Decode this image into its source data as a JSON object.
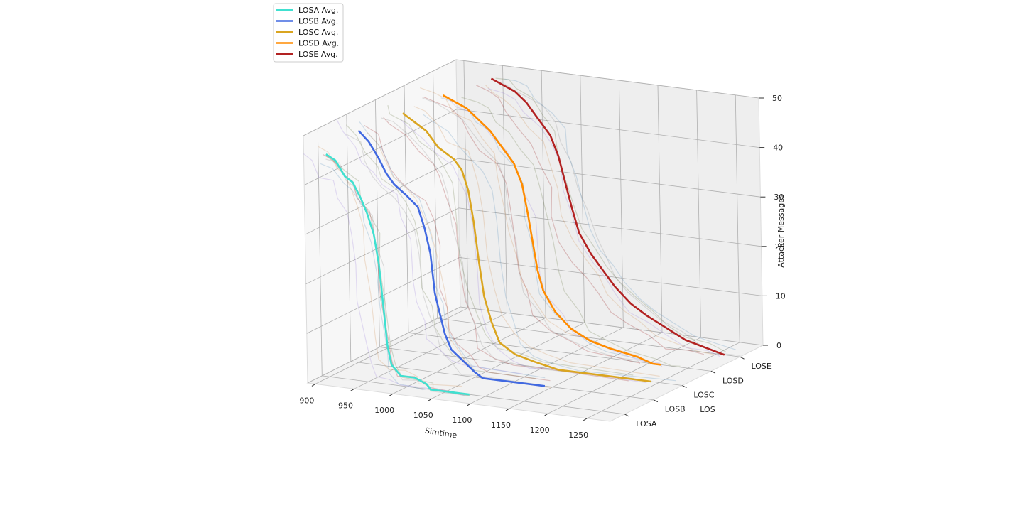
{
  "chart_data": {
    "type": "line",
    "projection": "3d",
    "xlabel": "Simtime",
    "ylabel": "LOS",
    "zlabel": "Attacker Messages",
    "x_ticks": [
      "900",
      "950",
      "1000",
      "1050",
      "1100",
      "1150",
      "1200",
      "1250"
    ],
    "z_ticks": [
      "0",
      "10",
      "20",
      "30",
      "40",
      "50"
    ],
    "categories": [
      "LOSA",
      "LOSB",
      "LOSC",
      "LOSD",
      "LOSE"
    ],
    "xlim": [
      890,
      1280
    ],
    "zlim": [
      0,
      50
    ],
    "grid": true,
    "legend_position": "top-left",
    "series": [
      {
        "name": "LOSA Avg.",
        "color": "#40e0d0",
        "category": "LOSA",
        "points": [
          [
            900,
            45
          ],
          [
            912,
            44
          ],
          [
            924,
            41
          ],
          [
            934,
            40
          ],
          [
            944,
            37
          ],
          [
            952,
            34
          ],
          [
            960,
            30
          ],
          [
            966,
            24
          ],
          [
            970,
            17
          ],
          [
            975,
            8
          ],
          [
            980,
            4
          ],
          [
            992,
            2
          ],
          [
            1010,
            2
          ],
          [
            1025,
            1
          ],
          [
            1030,
            0
          ],
          [
            1080,
            0
          ]
        ]
      },
      {
        "name": "LOSB Avg.",
        "color": "#4169e1",
        "category": "LOSB",
        "points": [
          [
            905,
            47
          ],
          [
            918,
            45
          ],
          [
            930,
            42
          ],
          [
            940,
            39
          ],
          [
            950,
            37
          ],
          [
            966,
            35
          ],
          [
            980,
            33
          ],
          [
            988,
            29
          ],
          [
            995,
            24
          ],
          [
            1000,
            16
          ],
          [
            1006,
            12
          ],
          [
            1012,
            8
          ],
          [
            1020,
            5
          ],
          [
            1035,
            3
          ],
          [
            1050,
            1
          ],
          [
            1060,
            0
          ],
          [
            1140,
            0
          ]
        ]
      },
      {
        "name": "LOSC Avg.",
        "color": "#daa520",
        "category": "LOSC",
        "points": [
          [
            925,
            48
          ],
          [
            935,
            47
          ],
          [
            955,
            45
          ],
          [
            970,
            42
          ],
          [
            990,
            40
          ],
          [
            1000,
            38
          ],
          [
            1008,
            34
          ],
          [
            1014,
            28
          ],
          [
            1020,
            20
          ],
          [
            1026,
            13
          ],
          [
            1035,
            8
          ],
          [
            1045,
            4
          ],
          [
            1065,
            2
          ],
          [
            1090,
            1
          ],
          [
            1120,
            0
          ],
          [
            1240,
            0
          ]
        ]
      },
      {
        "name": "LOSD Avg.",
        "color": "#ff8c00",
        "category": "LOSD",
        "points": [
          [
            940,
            49
          ],
          [
            955,
            48
          ],
          [
            970,
            47
          ],
          [
            985,
            45
          ],
          [
            1000,
            43
          ],
          [
            1015,
            40
          ],
          [
            1030,
            37
          ],
          [
            1040,
            33
          ],
          [
            1047,
            27
          ],
          [
            1052,
            22
          ],
          [
            1058,
            16
          ],
          [
            1065,
            12
          ],
          [
            1080,
            8
          ],
          [
            1100,
            5
          ],
          [
            1125,
            3
          ],
          [
            1150,
            2
          ],
          [
            1185,
            1
          ],
          [
            1205,
            0
          ],
          [
            1215,
            0
          ]
        ]
      },
      {
        "name": "LOSE Avg.",
        "color": "#b22222",
        "category": "LOSE",
        "points": [
          [
            965,
            50
          ],
          [
            980,
            49
          ],
          [
            995,
            48
          ],
          [
            1010,
            46
          ],
          [
            1025,
            43
          ],
          [
            1040,
            40
          ],
          [
            1050,
            36
          ],
          [
            1058,
            31
          ],
          [
            1066,
            26
          ],
          [
            1075,
            21
          ],
          [
            1090,
            17
          ],
          [
            1105,
            14
          ],
          [
            1120,
            11
          ],
          [
            1140,
            8
          ],
          [
            1160,
            6
          ],
          [
            1185,
            4
          ],
          [
            1210,
            2
          ],
          [
            1235,
            1
          ],
          [
            1260,
            0
          ]
        ]
      }
    ]
  }
}
